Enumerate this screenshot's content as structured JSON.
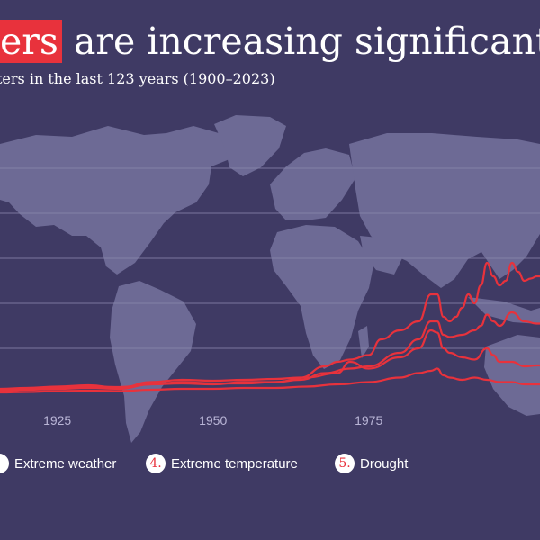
{
  "title": {
    "highlight": "ers",
    "rest": " are increasing significantly w"
  },
  "subtitle": "ters in the last 123 years (1900–2023)",
  "colors": {
    "background": "#3f3a64",
    "map": "#6d6a95",
    "line": "#e8323c",
    "grid": "#8a87ad"
  },
  "chart_data": {
    "type": "line",
    "xlim": [
      1915.8,
      2002.5
    ],
    "ylim": [
      0,
      5.0
    ],
    "x_ticks": [
      "1925",
      "1950",
      "1975"
    ],
    "gridlines_y": [
      1,
      2,
      3,
      4,
      5
    ],
    "series": [
      {
        "points": [
          [
            1915.8,
            0.1
          ],
          [
            1920,
            0.12
          ],
          [
            1925,
            0.15
          ],
          [
            1930,
            0.18
          ],
          [
            1935,
            0.12
          ],
          [
            1940,
            0.25
          ],
          [
            1945,
            0.3
          ],
          [
            1950,
            0.28
          ],
          [
            1955,
            0.3
          ],
          [
            1960,
            0.32
          ],
          [
            1964,
            0.35
          ],
          [
            1968,
            0.6
          ],
          [
            1970,
            0.7
          ],
          [
            1972,
            0.75
          ],
          [
            1975,
            0.85
          ],
          [
            1977,
            1.2
          ],
          [
            1980,
            1.4
          ],
          [
            1983,
            1.6
          ],
          [
            1985,
            2.2
          ],
          [
            1986,
            2.2
          ],
          [
            1987,
            1.7
          ],
          [
            1988,
            1.6
          ],
          [
            1989,
            1.7
          ],
          [
            1990,
            1.9
          ],
          [
            1991,
            2.2
          ],
          [
            1992,
            2.0
          ],
          [
            1993,
            2.4
          ],
          [
            1994,
            2.9
          ],
          [
            1995,
            2.6
          ],
          [
            1996,
            2.4
          ],
          [
            1997,
            2.5
          ],
          [
            1998,
            2.9
          ],
          [
            1999,
            2.7
          ],
          [
            2000,
            2.5
          ],
          [
            2001,
            2.55
          ],
          [
            2002,
            2.6
          ],
          [
            2002.5,
            2.6
          ]
        ]
      },
      {
        "points": [
          [
            1915.8,
            0.05
          ],
          [
            1920,
            0.08
          ],
          [
            1925,
            0.1
          ],
          [
            1930,
            0.12
          ],
          [
            1935,
            0.1
          ],
          [
            1940,
            0.2
          ],
          [
            1945,
            0.22
          ],
          [
            1950,
            0.2
          ],
          [
            1955,
            0.25
          ],
          [
            1960,
            0.25
          ],
          [
            1964,
            0.3
          ],
          [
            1968,
            0.45
          ],
          [
            1972,
            0.55
          ],
          [
            1975,
            0.6
          ],
          [
            1980,
            0.9
          ],
          [
            1983,
            1.2
          ],
          [
            1985,
            1.6
          ],
          [
            1986,
            1.6
          ],
          [
            1987,
            1.3
          ],
          [
            1988,
            1.25
          ],
          [
            1990,
            1.3
          ],
          [
            1992,
            1.4
          ],
          [
            1993,
            1.5
          ],
          [
            1994,
            1.75
          ],
          [
            1995,
            1.6
          ],
          [
            1996,
            1.5
          ],
          [
            1998,
            1.8
          ],
          [
            2000,
            1.6
          ],
          [
            2002,
            1.55
          ],
          [
            2002.5,
            1.55
          ]
        ]
      },
      {
        "points": [
          [
            1915.8,
            0.08
          ],
          [
            1920,
            0.1
          ],
          [
            1925,
            0.12
          ],
          [
            1930,
            0.15
          ],
          [
            1935,
            0.14
          ],
          [
            1940,
            0.2
          ],
          [
            1945,
            0.25
          ],
          [
            1950,
            0.22
          ],
          [
            1955,
            0.22
          ],
          [
            1960,
            0.25
          ],
          [
            1965,
            0.35
          ],
          [
            1970,
            0.45
          ],
          [
            1972,
            0.7
          ],
          [
            1975,
            0.55
          ],
          [
            1980,
            0.8
          ],
          [
            1983,
            1.0
          ],
          [
            1985,
            1.4
          ],
          [
            1986,
            1.35
          ],
          [
            1987,
            1.0
          ],
          [
            1988,
            0.9
          ],
          [
            1990,
            0.8
          ],
          [
            1992,
            0.75
          ],
          [
            1994,
            1.0
          ],
          [
            1995,
            0.85
          ],
          [
            1996,
            0.7
          ],
          [
            1998,
            0.7
          ],
          [
            2000,
            0.6
          ],
          [
            2002,
            0.62
          ],
          [
            2002.5,
            0.62
          ]
        ]
      },
      {
        "points": [
          [
            1915.8,
            0.02
          ],
          [
            1920,
            0.03
          ],
          [
            1925,
            0.05
          ],
          [
            1930,
            0.06
          ],
          [
            1935,
            0.05
          ],
          [
            1940,
            0.08
          ],
          [
            1945,
            0.1
          ],
          [
            1950,
            0.1
          ],
          [
            1955,
            0.12
          ],
          [
            1960,
            0.12
          ],
          [
            1965,
            0.15
          ],
          [
            1970,
            0.2
          ],
          [
            1975,
            0.25
          ],
          [
            1980,
            0.35
          ],
          [
            1983,
            0.45
          ],
          [
            1985,
            0.5
          ],
          [
            1986,
            0.55
          ],
          [
            1987,
            0.4
          ],
          [
            1988,
            0.35
          ],
          [
            1990,
            0.3
          ],
          [
            1992,
            0.35
          ],
          [
            1994,
            0.3
          ],
          [
            1996,
            0.25
          ],
          [
            1998,
            0.25
          ],
          [
            2000,
            0.2
          ],
          [
            2002,
            0.2
          ],
          [
            2002.5,
            0.2
          ]
        ]
      }
    ]
  },
  "legend": [
    {
      "number": ".",
      "label": "Extreme weather"
    },
    {
      "number": "4.",
      "label": "Extreme temperature"
    },
    {
      "number": "5.",
      "label": "Drought"
    }
  ]
}
